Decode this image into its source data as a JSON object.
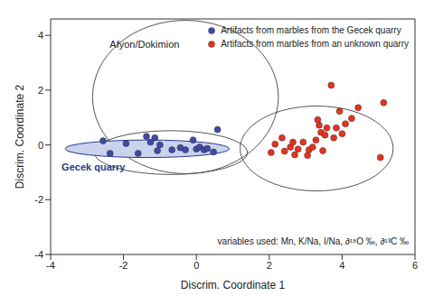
{
  "chart_data": {
    "type": "scatter",
    "x_label": "Discrim. Coordinate 1",
    "y_label": "Discrim. Coordinate 2",
    "xlim": [
      -4,
      6
    ],
    "xticks": [
      -4,
      -2,
      0,
      2,
      4,
      6
    ],
    "ylim": [
      -4,
      4.6
    ],
    "yticks": [
      -4,
      -2,
      0,
      2,
      4
    ],
    "grid": false,
    "legend": "upper right",
    "annotations": [
      "variables used: Mn, K/Na, I/Na, ∂¹⁸O ‰, ∂¹³C ‰"
    ],
    "series": [
      {
        "name": "Artifacts from marbles from the Gecek quarry",
        "color": "#3f4aa8",
        "marker": "circle",
        "x": [
          -2.56,
          -2.37,
          -1.93,
          -1.6,
          -1.37,
          -1.26,
          -1.14,
          -1.07,
          -1.0,
          -0.67,
          -0.44,
          -0.3,
          -0.09,
          0.0,
          0.09,
          0.21,
          0.3,
          0.47,
          0.58
        ],
        "y": [
          0.15,
          -0.31,
          0.05,
          -0.31,
          0.31,
          0.1,
          0.26,
          -0.21,
          0.0,
          -0.18,
          -0.1,
          -0.18,
          0.18,
          -0.15,
          -0.08,
          -0.18,
          -0.13,
          -0.26,
          0.56
        ]
      },
      {
        "name": "Artifacts from marbles from an unknown quarry",
        "color": "#e8321e",
        "marker": "circle",
        "x": [
          2.05,
          2.16,
          2.35,
          2.42,
          2.58,
          2.65,
          2.7,
          2.79,
          2.93,
          3.05,
          3.09,
          3.19,
          3.28,
          3.33,
          3.37,
          3.42,
          3.47,
          3.53,
          3.58,
          3.7,
          3.77,
          3.84,
          3.93,
          4.0,
          4.09,
          4.26,
          4.44,
          5.14,
          5.05
        ],
        "y": [
          -0.28,
          0.03,
          0.26,
          -0.23,
          -0.08,
          0.1,
          -0.36,
          -0.15,
          0.1,
          -0.38,
          -0.18,
          -0.08,
          0.18,
          0.92,
          0.72,
          0.46,
          -0.21,
          0.36,
          0.62,
          2.18,
          0.26,
          0.62,
          1.23,
          0.41,
          0.77,
          0.97,
          1.36,
          1.54,
          -0.46
        ]
      }
    ],
    "ellipses": [
      {
        "label": "Afyon/Dokimion",
        "center": [
          -0.3,
          1.75
        ],
        "radii": [
          2.55,
          2.8
        ],
        "color": "#555555"
      },
      {
        "center": [
          -0.7,
          -0.28
        ],
        "radii": [
          2.1,
          0.8
        ],
        "color": "#555555"
      },
      {
        "label": "Gecek quarry",
        "center": [
          -1.35,
          -0.14
        ],
        "radii": [
          2.25,
          0.32
        ],
        "color": "#2b3a8f",
        "fill": "#c9d3ee"
      },
      {
        "center": [
          3.3,
          -0.13
        ],
        "radii": [
          2.1,
          1.55
        ],
        "color": "#555555"
      }
    ]
  }
}
